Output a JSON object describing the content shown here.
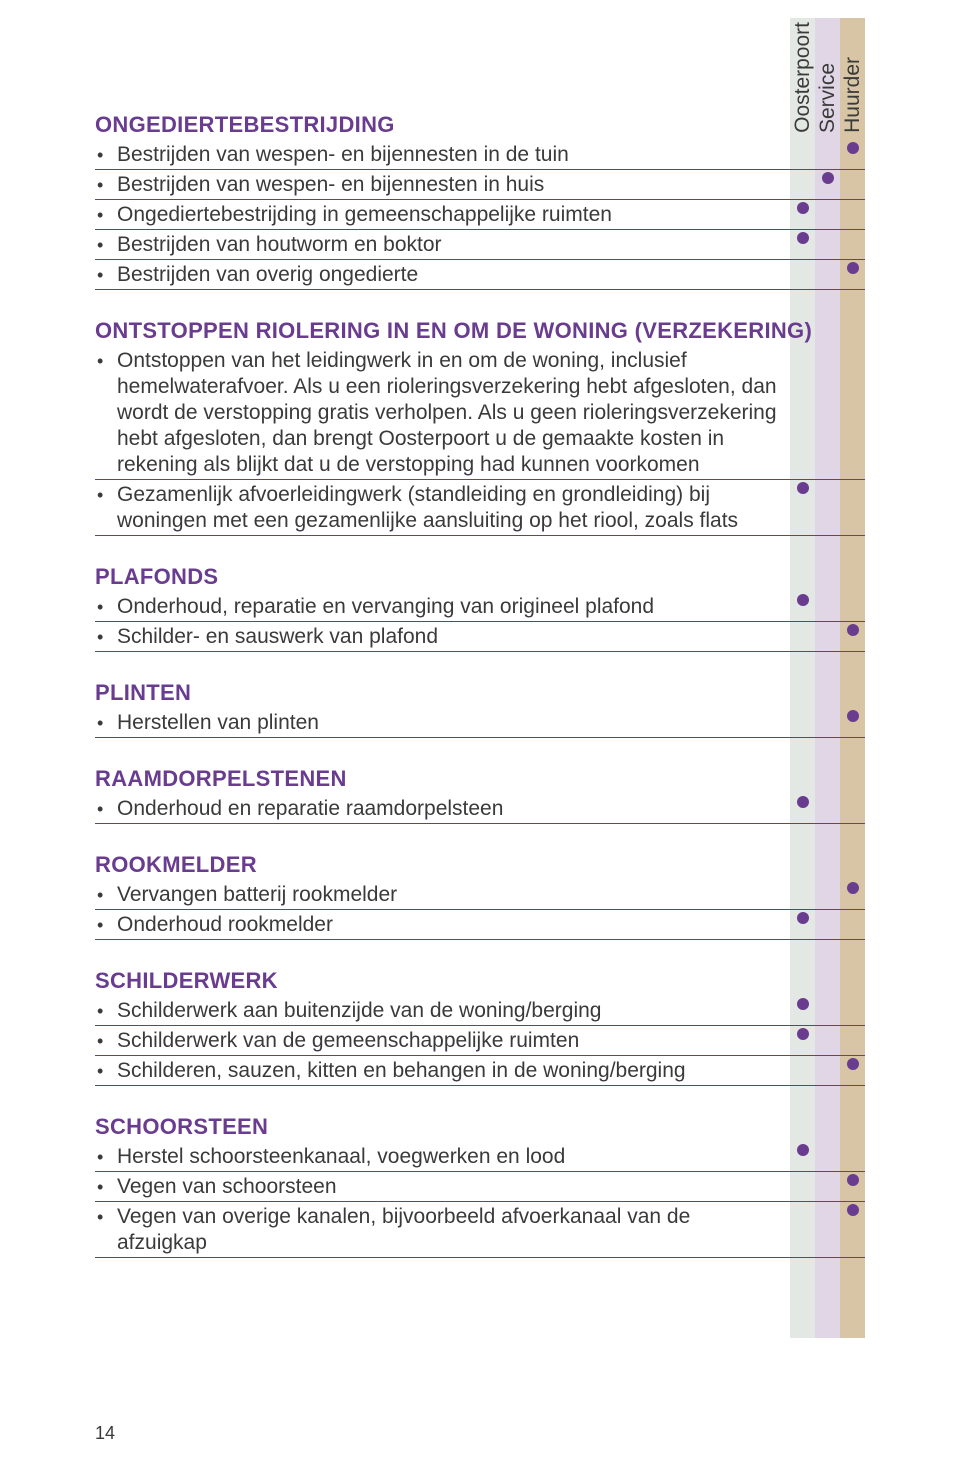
{
  "colors": {
    "heading": "#6a3c8f",
    "text": "#3a3a3a",
    "dot": "#6a3c8f",
    "rule": "#6a3c8f",
    "stripe1": "#e4e8e4",
    "stripe2": "#e0d6e5",
    "stripe3": "#d8c5a5"
  },
  "columns": [
    "Oosterpoort",
    "Service",
    "Huurder"
  ],
  "page_number": "14",
  "sections": [
    {
      "title": "ONGEDIERTEBESTRIJDING",
      "items": [
        {
          "text": "Bestrijden van wespen- en bijennesten in de tuin",
          "marks": [
            false,
            false,
            true
          ]
        },
        {
          "text": "Bestrijden van wespen- en bijennesten in huis",
          "marks": [
            false,
            true,
            false
          ]
        },
        {
          "text": "Ongediertebestrijding in gemeenschappelijke ruimten",
          "marks": [
            true,
            false,
            false
          ]
        },
        {
          "text": "Bestrijden van houtworm en boktor",
          "marks": [
            true,
            false,
            false
          ]
        },
        {
          "text": "Bestrijden van overig ongedierte",
          "marks": [
            false,
            false,
            true
          ]
        }
      ]
    },
    {
      "title": "ONTSTOPPEN RIOLERING IN EN OM DE WONING (VERZEKERING)",
      "items": [
        {
          "text": "Ontstoppen van het leidingwerk in en om de woning, inclusief hemelwaterafvoer. Als u een rioleringsverzekering hebt afgesloten, dan wordt de verstopping gratis verholpen. Als u geen rioleringsverzekering hebt afgesloten, dan brengt Oosterpoort u de gemaakte kosten in rekening als blijkt dat u de verstopping had kunnen voorkomen",
          "marks": [
            false,
            false,
            false
          ]
        },
        {
          "text": "Gezamenlijk afvoerleidingwerk (standleiding en grondleiding) bij woningen met een gezamenlijke aansluiting op het riool, zoals flats",
          "marks": [
            true,
            false,
            false
          ]
        }
      ]
    },
    {
      "title": "PLAFONDS",
      "items": [
        {
          "text": "Onderhoud, reparatie en vervanging van origineel plafond",
          "marks": [
            true,
            false,
            false
          ]
        },
        {
          "text": "Schilder- en sauswerk van plafond",
          "marks": [
            false,
            false,
            true
          ]
        }
      ]
    },
    {
      "title": "PLINTEN",
      "items": [
        {
          "text": "Herstellen van plinten",
          "marks": [
            false,
            false,
            true
          ]
        }
      ]
    },
    {
      "title": "RAAMDORPELSTENEN",
      "items": [
        {
          "text": "Onderhoud en reparatie raamdorpelsteen",
          "marks": [
            true,
            false,
            false
          ]
        }
      ]
    },
    {
      "title": "ROOKMELDER",
      "items": [
        {
          "text": "Vervangen batterij rookmelder",
          "marks": [
            false,
            false,
            true
          ]
        },
        {
          "text": "Onderhoud rookmelder",
          "marks": [
            true,
            false,
            false
          ]
        }
      ]
    },
    {
      "title": "SCHILDERWERK",
      "items": [
        {
          "text": "Schilderwerk aan buitenzijde van de woning/berging",
          "marks": [
            true,
            false,
            false
          ]
        },
        {
          "text": "Schilderwerk van de gemeenschappelijke ruimten",
          "marks": [
            true,
            false,
            false
          ]
        },
        {
          "text": "Schilderen, sauzen, kitten en behangen in de woning/berging",
          "marks": [
            false,
            false,
            true
          ]
        }
      ]
    },
    {
      "title": "SCHOORSTEEN",
      "items": [
        {
          "text": "Herstel schoorsteenkanaal, voegwerken en lood",
          "marks": [
            true,
            false,
            false
          ]
        },
        {
          "text": "Vegen van schoorsteen",
          "marks": [
            false,
            false,
            true
          ]
        },
        {
          "text": "Vegen van overige kanalen, bijvoorbeeld afvoerkanaal van de afzuigkap",
          "marks": [
            false,
            false,
            true
          ]
        }
      ]
    }
  ]
}
